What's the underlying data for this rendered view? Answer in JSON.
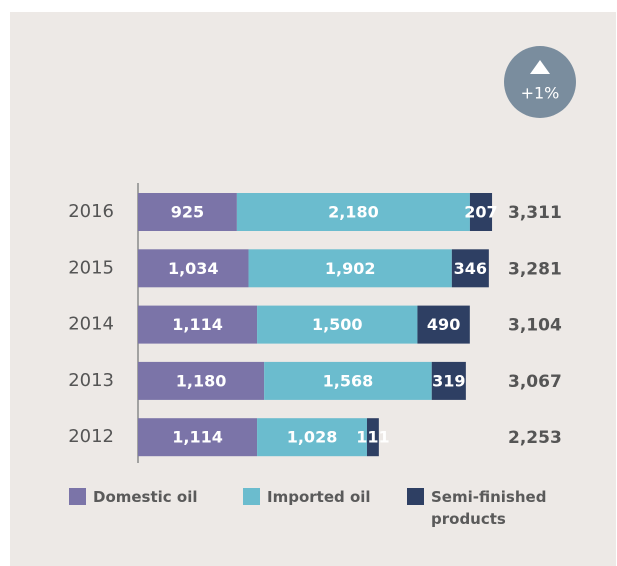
{
  "chart_data": {
    "type": "stacked-bar-horizontal",
    "badge": "+1%",
    "categories": [
      "2016",
      "2015",
      "2014",
      "2013",
      "2012"
    ],
    "series": [
      {
        "name": "Domestic oil",
        "color": "#7b74a8",
        "values": [
          925,
          1034,
          1114,
          1180,
          1114
        ],
        "value_labels": [
          "925",
          "1,034",
          "1,114",
          "1,180",
          "1,114"
        ]
      },
      {
        "name": "Imported oil",
        "color": "#6bbcce",
        "values": [
          2180,
          1902,
          1500,
          1568,
          1028
        ],
        "value_labels": [
          "2,180",
          "1,902",
          "1,500",
          "1,568",
          "1,028"
        ]
      },
      {
        "name": "Semi-finished products",
        "color": "#2e3f63",
        "values": [
          207,
          346,
          490,
          319,
          111
        ],
        "value_labels": [
          "207",
          "346",
          "490",
          "319",
          "111"
        ]
      }
    ],
    "totals": [
      3311,
      3281,
      3104,
      3067,
      2253
    ],
    "total_labels": [
      "3,311",
      "3,281",
      "3,104",
      "3,067",
      "2,253"
    ]
  }
}
